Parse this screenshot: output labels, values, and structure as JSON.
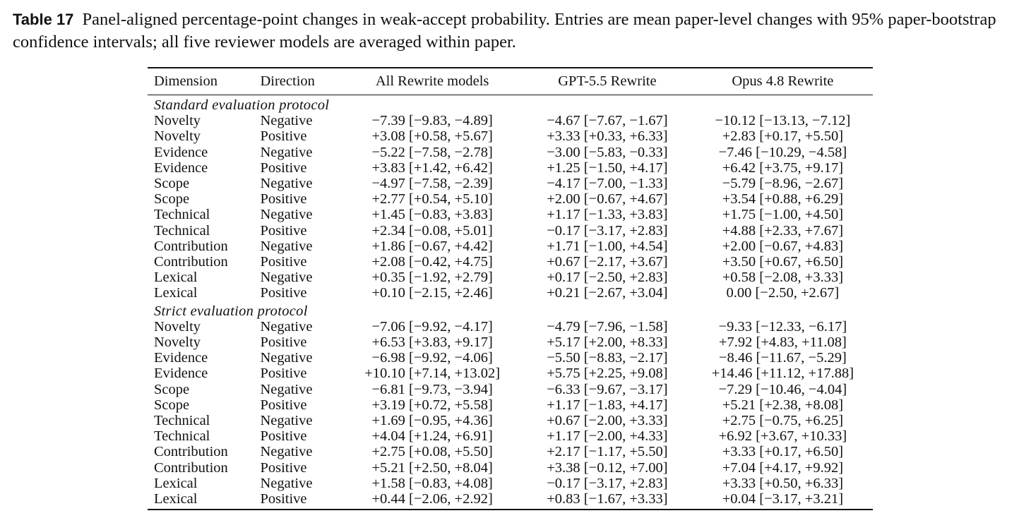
{
  "caption": {
    "label": "Table 17",
    "text": "Panel-aligned percentage-point changes in weak-accept probability. Entries are mean paper-level changes with 95% paper-bootstrap confidence intervals; all five reviewer models are averaged within paper."
  },
  "table": {
    "headers": [
      "Dimension",
      "Direction",
      "All Rewrite models",
      "GPT-5.5 Rewrite",
      "Opus 4.8 Rewrite"
    ],
    "sections": [
      {
        "title": "Standard evaluation protocol",
        "rows": [
          [
            "Novelty",
            "Negative",
            "−7.39 [−9.83, −4.89]",
            "−4.67 [−7.67, −1.67]",
            "−10.12 [−13.13, −7.12]"
          ],
          [
            "Novelty",
            "Positive",
            "+3.08 [+0.58, +5.67]",
            "+3.33 [+0.33, +6.33]",
            "+2.83 [+0.17, +5.50]"
          ],
          [
            "Evidence",
            "Negative",
            "−5.22 [−7.58, −2.78]",
            "−3.00 [−5.83, −0.33]",
            "−7.46 [−10.29, −4.58]"
          ],
          [
            "Evidence",
            "Positive",
            "+3.83 [+1.42, +6.42]",
            "+1.25 [−1.50, +4.17]",
            "+6.42 [+3.75, +9.17]"
          ],
          [
            "Scope",
            "Negative",
            "−4.97 [−7.58, −2.39]",
            "−4.17 [−7.00, −1.33]",
            "−5.79 [−8.96, −2.67]"
          ],
          [
            "Scope",
            "Positive",
            "+2.77 [+0.54, +5.10]",
            "+2.00 [−0.67, +4.67]",
            "+3.54 [+0.88, +6.29]"
          ],
          [
            "Technical",
            "Negative",
            "+1.45 [−0.83, +3.83]",
            "+1.17 [−1.33, +3.83]",
            "+1.75 [−1.00, +4.50]"
          ],
          [
            "Technical",
            "Positive",
            "+2.34 [−0.08, +5.01]",
            "−0.17 [−3.17, +2.83]",
            "+4.88 [+2.33, +7.67]"
          ],
          [
            "Contribution",
            "Negative",
            "+1.86 [−0.67, +4.42]",
            "+1.71 [−1.00, +4.54]",
            "+2.00 [−0.67, +4.83]"
          ],
          [
            "Contribution",
            "Positive",
            "+2.08 [−0.42, +4.75]",
            "+0.67 [−2.17, +3.67]",
            "+3.50 [+0.67, +6.50]"
          ],
          [
            "Lexical",
            "Negative",
            "+0.35 [−1.92, +2.79]",
            "+0.17 [−2.50, +2.83]",
            "+0.58 [−2.08, +3.33]"
          ],
          [
            "Lexical",
            "Positive",
            "+0.10 [−2.15, +2.46]",
            "+0.21 [−2.67, +3.04]",
            "0.00 [−2.50, +2.67]"
          ]
        ]
      },
      {
        "title": "Strict evaluation protocol",
        "rows": [
          [
            "Novelty",
            "Negative",
            "−7.06 [−9.92, −4.17]",
            "−4.79 [−7.96, −1.58]",
            "−9.33 [−12.33, −6.17]"
          ],
          [
            "Novelty",
            "Positive",
            "+6.53 [+3.83, +9.17]",
            "+5.17 [+2.00, +8.33]",
            "+7.92 [+4.83, +11.08]"
          ],
          [
            "Evidence",
            "Negative",
            "−6.98 [−9.92, −4.06]",
            "−5.50 [−8.83, −2.17]",
            "−8.46 [−11.67, −5.29]"
          ],
          [
            "Evidence",
            "Positive",
            "+10.10 [+7.14, +13.02]",
            "+5.75 [+2.25, +9.08]",
            "+14.46 [+11.12, +17.88]"
          ],
          [
            "Scope",
            "Negative",
            "−6.81 [−9.73, −3.94]",
            "−6.33 [−9.67, −3.17]",
            "−7.29 [−10.46, −4.04]"
          ],
          [
            "Scope",
            "Positive",
            "+3.19 [+0.72, +5.58]",
            "+1.17 [−1.83, +4.17]",
            "+5.21 [+2.38, +8.08]"
          ],
          [
            "Technical",
            "Negative",
            "+1.69 [−0.95, +4.36]",
            "+0.67 [−2.00, +3.33]",
            "+2.75 [−0.75, +6.25]"
          ],
          [
            "Technical",
            "Positive",
            "+4.04 [+1.24, +6.91]",
            "+1.17 [−2.00, +4.33]",
            "+6.92 [+3.67, +10.33]"
          ],
          [
            "Contribution",
            "Negative",
            "+2.75 [+0.08, +5.50]",
            "+2.17 [−1.17, +5.50]",
            "+3.33 [+0.17, +6.50]"
          ],
          [
            "Contribution",
            "Positive",
            "+5.21 [+2.50, +8.04]",
            "+3.38 [−0.12, +7.00]",
            "+7.04 [+4.17, +9.92]"
          ],
          [
            "Lexical",
            "Negative",
            "+1.58 [−0.83, +4.08]",
            "−0.17 [−3.17, +2.83]",
            "+3.33 [+0.50, +6.33]"
          ],
          [
            "Lexical",
            "Positive",
            "+0.44 [−2.06, +2.92]",
            "+0.83 [−1.67, +3.33]",
            "+0.04 [−3.17, +3.21]"
          ]
        ]
      }
    ]
  }
}
